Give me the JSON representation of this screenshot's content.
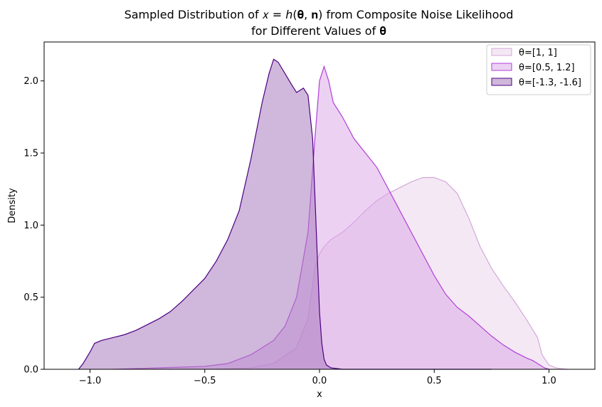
{
  "chart_data": {
    "type": "area",
    "title_line1": "Sampled Distribution of 𝑥 = ℎ(𝛉, 𝐧) from Composite Noise Likelihood",
    "title_line2": "for Different Values of 𝛉",
    "xlabel": "x",
    "ylabel": "Density",
    "xlim": [
      -1.2,
      1.2
    ],
    "ylim": [
      0,
      2.27
    ],
    "xticks": [
      -1.0,
      -0.5,
      0.0,
      0.5,
      1.0
    ],
    "xtick_labels": [
      "−1.0",
      "−0.5",
      "0.0",
      "0.5",
      "1.0"
    ],
    "yticks": [
      0.0,
      0.5,
      1.0,
      1.5,
      2.0
    ],
    "ytick_labels": [
      "0.0",
      "0.5",
      "1.0",
      "1.5",
      "2.0"
    ],
    "grid": false,
    "legend_position": "top-right",
    "series": [
      {
        "name": "θ=[1, 1]",
        "fill": "#e6cce6",
        "fill_opacity": 0.45,
        "stroke": "#d4a8d9",
        "x": [
          -0.45,
          -0.3,
          -0.2,
          -0.1,
          -0.05,
          -0.02,
          0.0,
          0.02,
          0.05,
          0.1,
          0.15,
          0.2,
          0.25,
          0.3,
          0.35,
          0.4,
          0.45,
          0.5,
          0.55,
          0.6,
          0.65,
          0.7,
          0.75,
          0.8,
          0.85,
          0.9,
          0.95,
          0.97,
          1.0,
          1.03,
          1.05,
          1.08
        ],
        "y": [
          0.0,
          0.01,
          0.04,
          0.15,
          0.35,
          0.7,
          0.8,
          0.85,
          0.9,
          0.95,
          1.02,
          1.1,
          1.17,
          1.22,
          1.26,
          1.3,
          1.33,
          1.33,
          1.3,
          1.22,
          1.05,
          0.85,
          0.7,
          0.58,
          0.47,
          0.35,
          0.22,
          0.1,
          0.03,
          0.01,
          0.005,
          0.0
        ]
      },
      {
        "name": "θ=[0.5, 1.2]",
        "fill": "#d9a3e8",
        "fill_opacity": 0.5,
        "stroke": "#b040d8",
        "x": [
          -0.9,
          -0.5,
          -0.4,
          -0.3,
          -0.2,
          -0.15,
          -0.1,
          -0.05,
          -0.02,
          0.0,
          0.02,
          0.04,
          0.06,
          0.1,
          0.15,
          0.2,
          0.25,
          0.3,
          0.35,
          0.4,
          0.45,
          0.5,
          0.55,
          0.6,
          0.65,
          0.7,
          0.75,
          0.8,
          0.85,
          0.9,
          0.93,
          0.96,
          0.98,
          1.0
        ],
        "y": [
          0.0,
          0.02,
          0.04,
          0.1,
          0.2,
          0.3,
          0.5,
          0.95,
          1.6,
          2.0,
          2.1,
          2.0,
          1.85,
          1.75,
          1.6,
          1.5,
          1.4,
          1.25,
          1.1,
          0.95,
          0.8,
          0.65,
          0.52,
          0.43,
          0.37,
          0.3,
          0.23,
          0.17,
          0.12,
          0.08,
          0.06,
          0.03,
          0.01,
          0.0
        ]
      },
      {
        "name": "θ=[-1.3, -1.6]",
        "fill": "#a97cbf",
        "fill_opacity": 0.55,
        "stroke": "#4b0082",
        "x": [
          -1.05,
          -1.03,
          -1.0,
          -0.98,
          -0.95,
          -0.9,
          -0.85,
          -0.8,
          -0.7,
          -0.65,
          -0.6,
          -0.55,
          -0.5,
          -0.45,
          -0.4,
          -0.35,
          -0.3,
          -0.25,
          -0.22,
          -0.2,
          -0.18,
          -0.15,
          -0.12,
          -0.1,
          -0.07,
          -0.05,
          -0.03,
          -0.02,
          -0.01,
          0.0,
          0.01,
          0.02,
          0.03,
          0.05,
          0.1,
          0.3,
          0.75
        ],
        "y": [
          0.0,
          0.04,
          0.12,
          0.18,
          0.2,
          0.22,
          0.24,
          0.27,
          0.35,
          0.4,
          0.47,
          0.55,
          0.63,
          0.75,
          0.9,
          1.1,
          1.45,
          1.85,
          2.05,
          2.15,
          2.13,
          2.05,
          1.97,
          1.92,
          1.95,
          1.9,
          1.6,
          1.2,
          0.8,
          0.4,
          0.18,
          0.07,
          0.03,
          0.01,
          0.0,
          0.0,
          0.0
        ]
      }
    ]
  }
}
